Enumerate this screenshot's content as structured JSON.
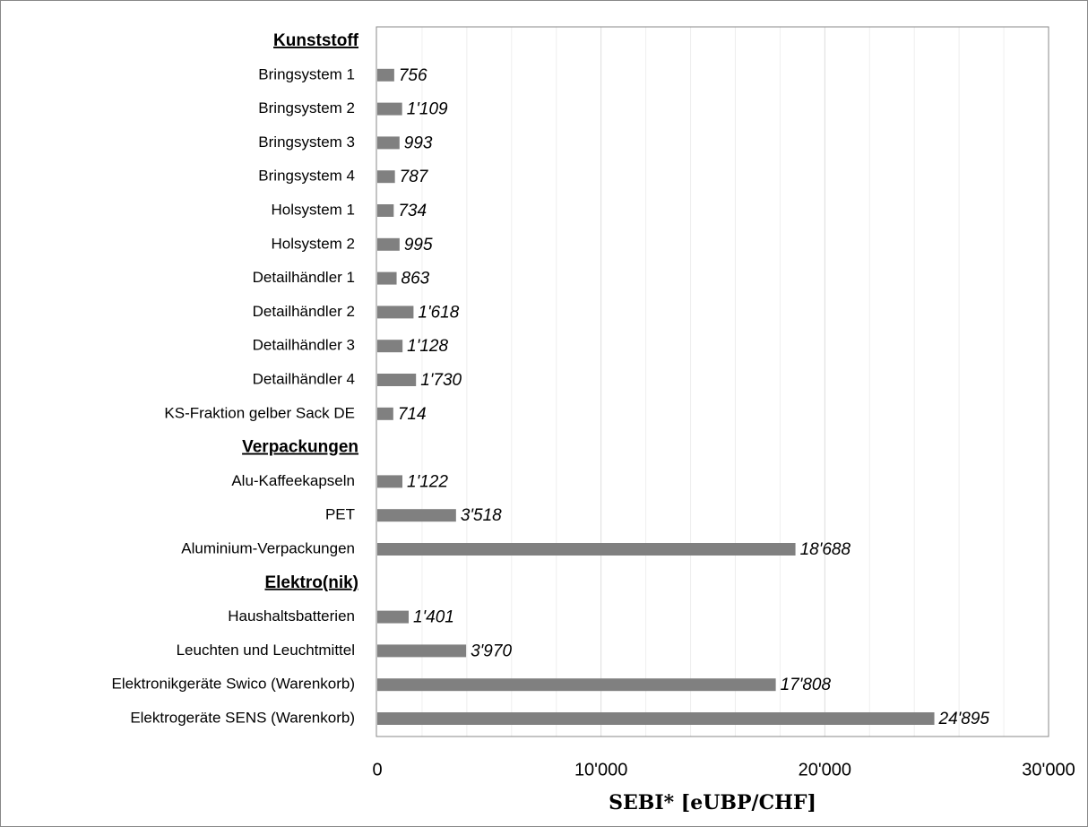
{
  "chart_data": {
    "type": "bar",
    "orientation": "horizontal",
    "color": "#808080",
    "x_label": "SEBI* [eUBP/CHF]",
    "groups": [
      {
        "name": "Kunststoff",
        "categories": [
          "Bringsystem 1",
          "Bringsystem 2",
          "Bringsystem 3",
          "Bringsystem 4",
          "Holsystem 1",
          "Holsystem 2",
          "Detailhändler 1",
          "Detailhändler 2",
          "Detailhändler 3",
          "Detailhändler 4",
          "KS-Fraktion gelber Sack DE"
        ],
        "values": [
          756,
          1109,
          993,
          787,
          734,
          995,
          863,
          1618,
          1128,
          1730,
          714
        ],
        "value_labels": [
          "756",
          "1'109",
          "993",
          "787",
          "734",
          "995",
          "863",
          "1'618",
          "1'128",
          "1'730",
          "714"
        ]
      },
      {
        "name": "Verpackungen",
        "categories": [
          "Alu-Kaffeekapseln",
          "PET",
          "Aluminium-Verpackungen"
        ],
        "values": [
          1122,
          3518,
          18688
        ],
        "value_labels": [
          "1'122",
          "3'518",
          "18'688"
        ]
      },
      {
        "name": "Elektro(nik)",
        "categories": [
          "Haushaltsbatterien",
          "Leuchten und Leuchtmittel",
          "Elektronikgeräte Swico (Warenkorb)",
          "Elektrogeräte SENS (Warenkorb)"
        ],
        "values": [
          1401,
          3970,
          17808,
          24895
        ],
        "value_labels": [
          "1'401",
          "3'970",
          "17'808",
          "24'895"
        ]
      }
    ],
    "xlim": [
      0,
      30000
    ],
    "xticks": [
      0,
      {
        "value": 10000,
        "label": "10'000"
      },
      {
        "value": 20000,
        "label": "20'000"
      },
      {
        "value": 30000,
        "label": "30'000"
      }
    ],
    "xminorticks": [
      2000,
      4000,
      6000,
      8000,
      12000,
      14000,
      16000,
      18000,
      22000,
      24000,
      26000,
      28000
    ],
    "grid": true
  }
}
